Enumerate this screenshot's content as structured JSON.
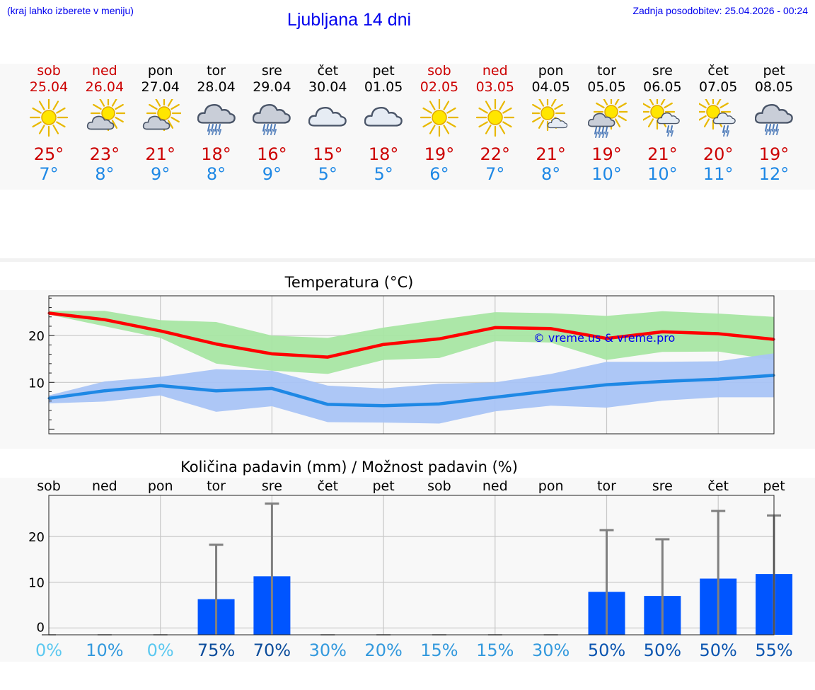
{
  "header": {
    "hint": "(kraj lahko izberete v meniju)",
    "title": "Ljubljana 14 dni",
    "updated": "Zadnja posodobitev: 25.04.2026 - 00:24"
  },
  "colors": {
    "weekend": "#cc0000",
    "tmax": "#ff0000",
    "tmin": "#1e88e5",
    "tmax_band": "#a8e6a3",
    "tmin_band": "#a9c4f5",
    "precip_bar": "#0055ff",
    "error_bar": "#808080"
  },
  "days": [
    {
      "wd": "sob",
      "date": "25.04",
      "weekend": true,
      "icon": "sun-icon",
      "tmax": "25°",
      "tmin": "7°"
    },
    {
      "wd": "ned",
      "date": "26.04",
      "weekend": true,
      "icon": "sun-cloud-icon",
      "tmax": "23°",
      "tmin": "8°"
    },
    {
      "wd": "pon",
      "date": "27.04",
      "weekend": false,
      "icon": "sun-cloud-icon",
      "tmax": "21°",
      "tmin": "9°"
    },
    {
      "wd": "tor",
      "date": "28.04",
      "weekend": false,
      "icon": "cloud-rain-icon",
      "tmax": "18°",
      "tmin": "8°"
    },
    {
      "wd": "sre",
      "date": "29.04",
      "weekend": false,
      "icon": "cloud-rain-icon",
      "tmax": "16°",
      "tmin": "9°"
    },
    {
      "wd": "čet",
      "date": "30.04",
      "weekend": false,
      "icon": "cloud-icon",
      "tmax": "15°",
      "tmin": "5°"
    },
    {
      "wd": "pet",
      "date": "01.05",
      "weekend": false,
      "icon": "cloud-icon",
      "tmax": "18°",
      "tmin": "5°"
    },
    {
      "wd": "sob",
      "date": "02.05",
      "weekend": true,
      "icon": "sun-icon",
      "tmax": "19°",
      "tmin": "6°"
    },
    {
      "wd": "ned",
      "date": "03.05",
      "weekend": true,
      "icon": "sun-icon",
      "tmax": "22°",
      "tmin": "7°"
    },
    {
      "wd": "pon",
      "date": "04.05",
      "weekend": false,
      "icon": "sun-small-cloud-icon",
      "tmax": "21°",
      "tmin": "8°"
    },
    {
      "wd": "tor",
      "date": "05.05",
      "weekend": false,
      "icon": "sun-cloud-rain-icon",
      "tmax": "19°",
      "tmin": "10°"
    },
    {
      "wd": "sre",
      "date": "06.05",
      "weekend": false,
      "icon": "sun-cloud-drizzle-icon",
      "tmax": "21°",
      "tmin": "10°"
    },
    {
      "wd": "čet",
      "date": "07.05",
      "weekend": false,
      "icon": "sun-cloud-drizzle-icon",
      "tmax": "20°",
      "tmin": "11°"
    },
    {
      "wd": "pet",
      "date": "08.05",
      "weekend": false,
      "icon": "cloud-rain-icon",
      "tmax": "19°",
      "tmin": "12°"
    }
  ],
  "chart_data": [
    {
      "type": "line",
      "title": "Temperatura (°C)",
      "watermark": "© vreme.us & vreme.pro",
      "x": [
        0,
        1,
        2,
        3,
        4,
        5,
        6,
        7,
        8,
        9,
        10,
        11,
        12,
        13
      ],
      "ylim": [
        -1,
        28.5
      ],
      "yticks": [
        10,
        20
      ],
      "yticklabels": [
        "10",
        "20"
      ],
      "series": [
        {
          "name": "tmax",
          "values": [
            24.8,
            23.4,
            21.0,
            18.2,
            16.1,
            15.4,
            18.1,
            19.3,
            21.7,
            21.5,
            19.4,
            20.8,
            20.4,
            19.2
          ]
        },
        {
          "name": "tmin",
          "values": [
            6.6,
            8.2,
            9.3,
            8.2,
            8.7,
            5.3,
            5.0,
            5.4,
            6.8,
            8.2,
            9.5,
            10.2,
            10.7,
            11.5
          ]
        }
      ],
      "bands": [
        {
          "name": "tmax_range",
          "lower": [
            24.5,
            22.0,
            19.5,
            14.0,
            12.5,
            11.8,
            14.8,
            15.2,
            18.8,
            18.5,
            14.8,
            16.5,
            16.6,
            14.8
          ],
          "upper": [
            25.3,
            25.3,
            23.3,
            22.9,
            20.0,
            19.5,
            21.7,
            23.4,
            25.0,
            24.8,
            24.2,
            25.2,
            24.7,
            24.0
          ]
        },
        {
          "name": "tmin_range",
          "lower": [
            5.5,
            5.9,
            7.2,
            3.7,
            4.9,
            1.5,
            1.4,
            1.2,
            3.8,
            5.0,
            4.6,
            6.1,
            6.8,
            6.8
          ],
          "upper": [
            7.2,
            10.2,
            11.2,
            12.8,
            12.5,
            9.3,
            8.7,
            9.7,
            10.0,
            11.8,
            14.4,
            14.4,
            14.5,
            16.2
          ]
        }
      ]
    },
    {
      "type": "bar",
      "title": "Količina padavin (mm) / Možnost padavin (%)",
      "categories": [
        "sob",
        "ned",
        "pon",
        "tor",
        "sre",
        "čet",
        "pet",
        "sob",
        "ned",
        "pon",
        "tor",
        "sre",
        "čet",
        "pet"
      ],
      "ylim": [
        -1.5,
        29
      ],
      "yticks": [
        0,
        10,
        20
      ],
      "yticklabels": [
        "0",
        "10",
        "20"
      ],
      "series": [
        {
          "name": "amount_mm",
          "values": [
            0,
            0,
            0,
            6.3,
            11.3,
            0,
            0,
            0,
            0,
            0,
            7.9,
            7.0,
            10.8,
            11.8
          ]
        },
        {
          "name": "amount_max_mm",
          "values": [
            0,
            0,
            0,
            18.2,
            27.2,
            0,
            0,
            0,
            0,
            0,
            21.4,
            19.4,
            25.6,
            24.6
          ]
        }
      ],
      "probability": [
        "0%",
        "10%",
        "0%",
        "75%",
        "70%",
        "30%",
        "20%",
        "15%",
        "15%",
        "30%",
        "50%",
        "50%",
        "50%",
        "55%"
      ],
      "probability_colors": [
        "#5bc8f0",
        "#3399dd",
        "#5bc8f0",
        "#0b4c9b",
        "#0b4c9b",
        "#3399dd",
        "#3399dd",
        "#3399dd",
        "#3399dd",
        "#3399dd",
        "#0b55b0",
        "#0b55b0",
        "#0b55b0",
        "#0b55b0"
      ]
    }
  ]
}
